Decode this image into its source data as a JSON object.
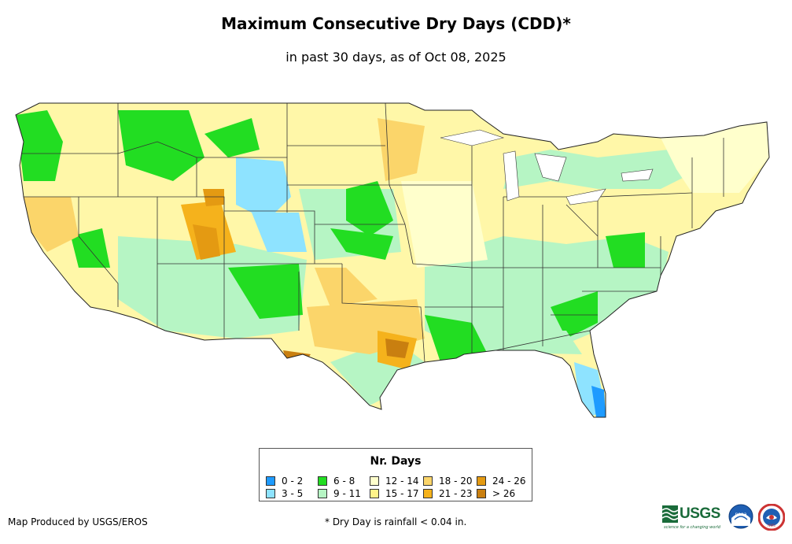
{
  "header": {
    "title": "Maximum Consecutive Dry Days (CDD)*",
    "subtitle": "in past 30 days, as of Oct 08, 2025"
  },
  "legend": {
    "title": "Nr. Days",
    "items": [
      {
        "label": "0 - 2",
        "color": "#1e9bff"
      },
      {
        "label": "3 - 5",
        "color": "#8ee3ff"
      },
      {
        "label": "6 - 8",
        "color": "#22dd22"
      },
      {
        "label": "9 - 11",
        "color": "#b6f5c4"
      },
      {
        "label": "12 - 14",
        "color": "#ffffcc"
      },
      {
        "label": "15 - 17",
        "color": "#fff38a"
      },
      {
        "label": "18 - 20",
        "color": "#fbd56a"
      },
      {
        "label": "21 - 23",
        "color": "#f5b21c"
      },
      {
        "label": "24 - 26",
        "color": "#e49a12"
      },
      {
        "label": "> 26",
        "color": "#c97f10"
      }
    ]
  },
  "footer": {
    "credit": "Map Produced by USGS/EROS",
    "note": "* Dry Day is rainfall < 0.04 in.",
    "usgs_logo_text": "USGS",
    "usgs_tagline": "science for a changing world",
    "noaa_logo_text": "noaa",
    "nws_logo_text": "NWS"
  }
}
